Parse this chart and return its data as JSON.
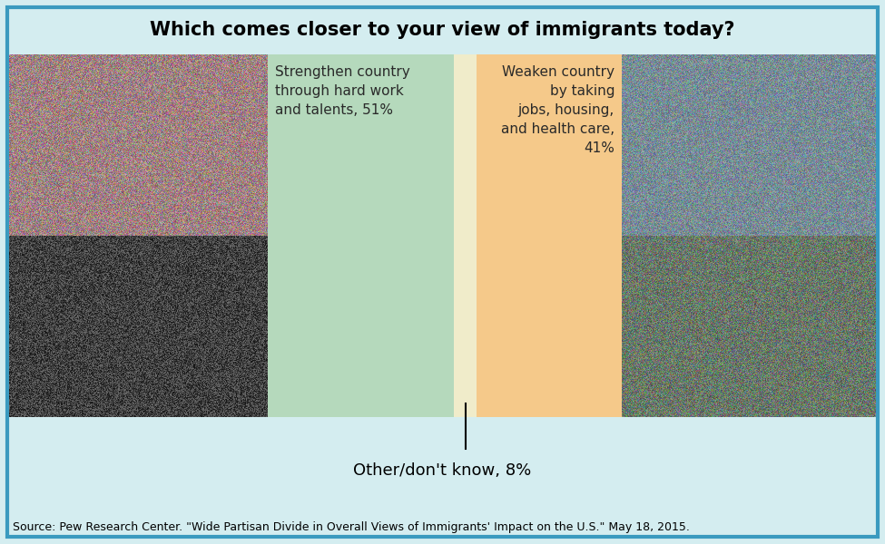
{
  "title": "Which comes closer to your view of immigrants today?",
  "background_color": "#d4edf0",
  "border_color": "#3a9abf",
  "bar_green_color": "#b5d9bc",
  "bar_orange_color": "#f5c98a",
  "bar_gap_color": "#f0ecca",
  "bar_green_label": "Strengthen country\nthrough hard work\nand talents, 51%",
  "bar_orange_label": "Weaken country\nby taking\njobs, housing,\nand health care,\n41%",
  "bar_other_label": "Other/don't know, 8%",
  "source_text": "Source: Pew Research Center. \"Wide Partisan Divide in Overall Views of Immigrants' Impact on the U.S.\" May 18, 2015.",
  "title_fontsize": 15,
  "label_fontsize": 11,
  "source_fontsize": 9
}
